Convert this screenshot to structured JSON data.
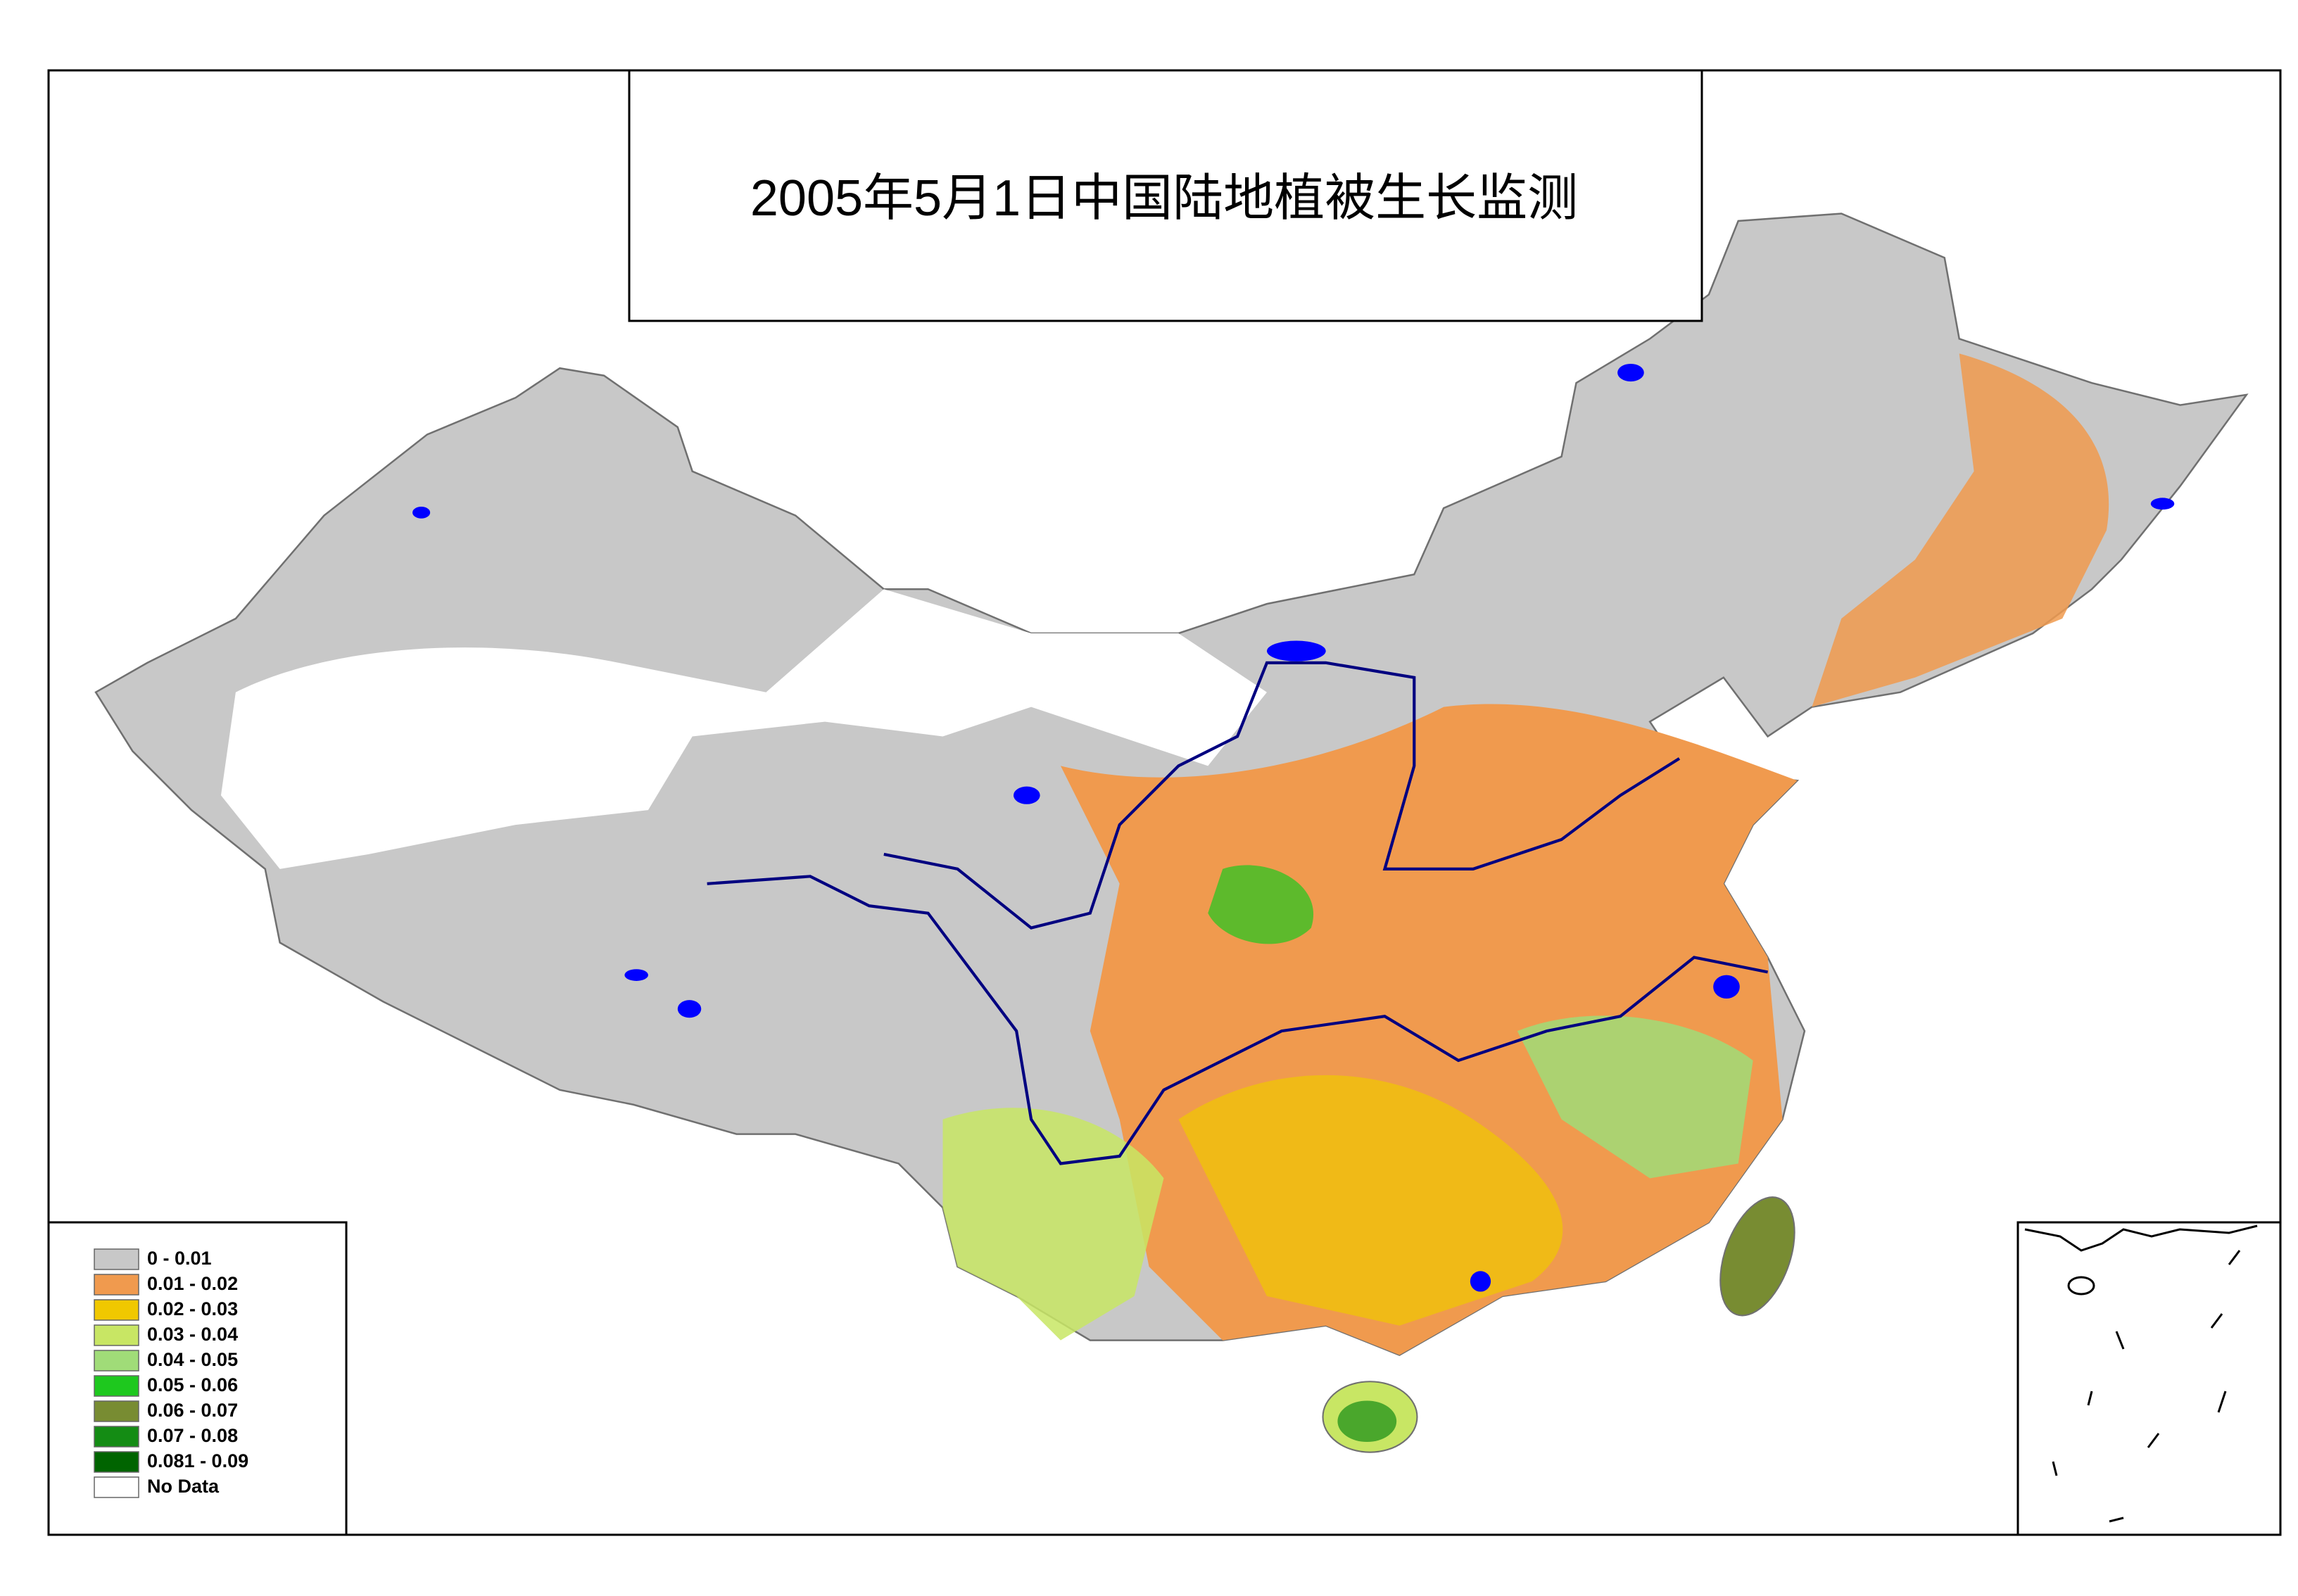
{
  "title": "2005年5月1日中国陆地植被生长监测",
  "legend": {
    "items": [
      {
        "label": "0 - 0.01",
        "color": "#c8c8c8"
      },
      {
        "label": "0.01 - 0.02",
        "color": "#f09a4e"
      },
      {
        "label": "0.02 - 0.03",
        "color": "#f0c800"
      },
      {
        "label": "0.03 - 0.04",
        "color": "#c8e664"
      },
      {
        "label": "0.04 - 0.05",
        "color": "#a0dc78"
      },
      {
        "label": "0.05 - 0.06",
        "color": "#1ec81e"
      },
      {
        "label": "0.06 - 0.07",
        "color": "#788c32"
      },
      {
        "label": "0.07 - 0.08",
        "color": "#148c14"
      },
      {
        "label": "0.081 - 0.09",
        "color": "#006400"
      },
      {
        "label": "No Data",
        "color": "#ffffff"
      }
    ]
  }
}
